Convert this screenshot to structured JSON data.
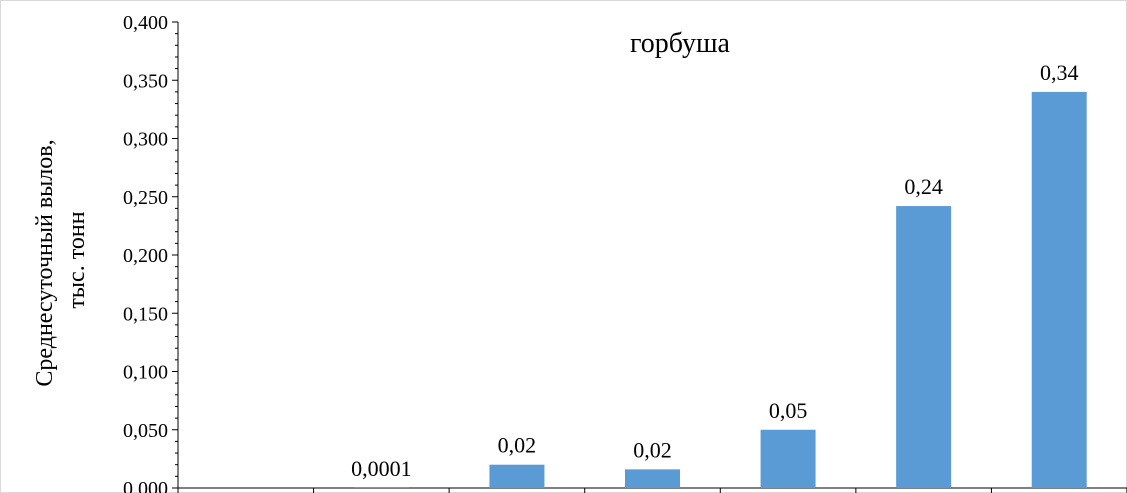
{
  "chart_data": {
    "type": "bar",
    "title": "горбуша",
    "ylabel_lines": [
      "Среднесуточный  вылов,",
      "тыс. тонн"
    ],
    "xlabel": "",
    "categories": [
      "",
      "",
      "",
      "",
      "",
      "",
      ""
    ],
    "values": [
      0,
      0.0001,
      0.02,
      0.016,
      0.05,
      0.242,
      0.34
    ],
    "data_labels": [
      "",
      "0,0001",
      "0,02",
      "0,02",
      "0,05",
      "0,24",
      "0,34"
    ],
    "ylim": [
      0,
      0.4
    ],
    "yticks": [
      0,
      0.05,
      0.1,
      0.15,
      0.2,
      0.25,
      0.3,
      0.35,
      0.4
    ],
    "ytick_labels": [
      "0,000",
      "0,050",
      "0,100",
      "0,150",
      "0,200",
      "0,250",
      "0,300",
      "0,350",
      "0,400"
    ],
    "grid": false,
    "legend": "none",
    "colors": {
      "bar": "#5b9bd5",
      "axis": "#000000",
      "frame": "#d9d9d9"
    }
  }
}
